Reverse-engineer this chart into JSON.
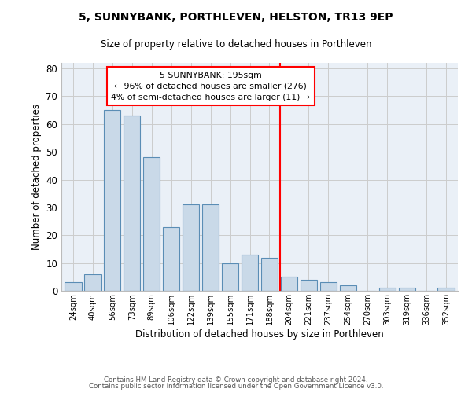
{
  "title": "5, SUNNYBANK, PORTHLEVEN, HELSTON, TR13 9EP",
  "subtitle": "Size of property relative to detached houses in Porthleven",
  "xlabel": "Distribution of detached houses by size in Porthleven",
  "ylabel": "Number of detached properties",
  "bin_labels": [
    "24sqm",
    "40sqm",
    "56sqm",
    "73sqm",
    "89sqm",
    "106sqm",
    "122sqm",
    "139sqm",
    "155sqm",
    "171sqm",
    "188sqm",
    "204sqm",
    "221sqm",
    "237sqm",
    "254sqm",
    "270sqm",
    "303sqm",
    "319sqm",
    "336sqm",
    "352sqm"
  ],
  "bar_values": [
    3,
    6,
    65,
    63,
    48,
    23,
    31,
    31,
    10,
    13,
    12,
    5,
    4,
    3,
    2,
    0,
    1,
    1,
    0,
    1
  ],
  "bar_color": "#c9d9e8",
  "bar_edge_color": "#5a8db5",
  "property_line_x": 10.55,
  "annotation_text": "5 SUNNYBANK: 195sqm\n← 96% of detached houses are smaller (276)\n4% of semi-detached houses are larger (11) →",
  "annotation_box_color": "white",
  "annotation_box_edge_color": "red",
  "vline_color": "red",
  "ylim": [
    0,
    82
  ],
  "yticks": [
    0,
    10,
    20,
    30,
    40,
    50,
    60,
    70,
    80
  ],
  "grid_color": "#cccccc",
  "bg_color": "#eaf0f7",
  "footer1": "Contains HM Land Registry data © Crown copyright and database right 2024.",
  "footer2": "Contains public sector information licensed under the Open Government Licence v3.0."
}
